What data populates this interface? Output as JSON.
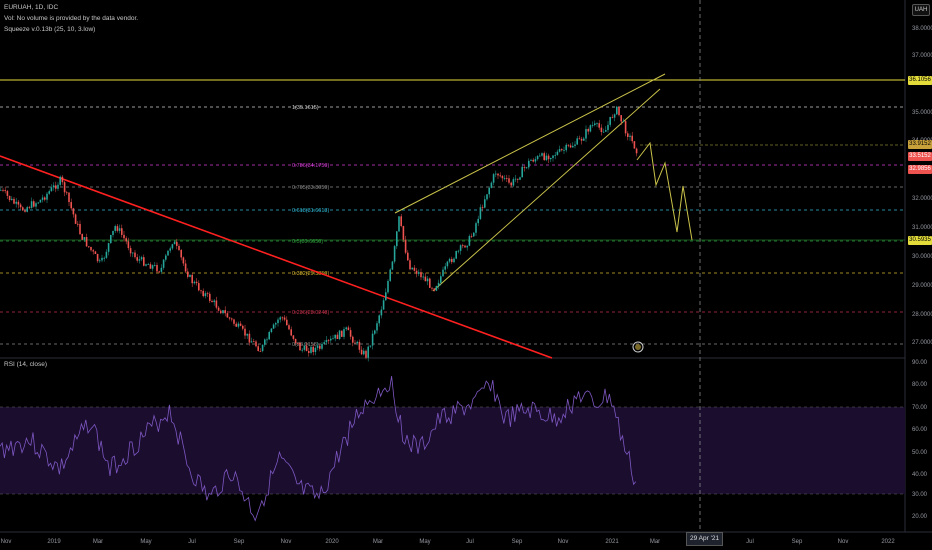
{
  "legend": {
    "symbol_line": "EURUAH, 1D, IDC",
    "volume_note": "Vol: No volume is provided by the data vendor.",
    "indicator": "Squeeze v.0.13b (25, 10, 3.low)",
    "rsi_title": "RSI (14, close)"
  },
  "currency_badge": "UAH",
  "price_axis": [
    "38.0000",
    "37.0000",
    "36.0000",
    "35.0000",
    "34.0000",
    "33.0000",
    "32.0000",
    "31.0000",
    "30.0000",
    "29.0000",
    "28.0000",
    "27.0000"
  ],
  "rsi_axis": [
    "90.00",
    "80.00",
    "70.00",
    "60.00",
    "50.00",
    "40.00",
    "30.00",
    "20.00"
  ],
  "time_axis": [
    "Nov",
    "2019",
    "Mar",
    "May",
    "Jul",
    "Sep",
    "Nov",
    "2020",
    "Mar",
    "May",
    "Jul",
    "Sep",
    "Nov",
    "2021",
    "Mar",
    "May",
    "Jul",
    "Sep",
    "Nov",
    "2022"
  ],
  "date_marker": "29 Apr '21",
  "fib_levels": [
    {
      "label": "1(35.1615)",
      "color": "#cfcfcf"
    },
    {
      "label": "0.786(34.1759)",
      "color": "#d63ed6"
    },
    {
      "label": "0.705(33.8059)",
      "color": "#8a8a8a"
    },
    {
      "label": "0.618(31.6613)",
      "color": "#2fb8d4"
    },
    {
      "label": "0.5(30.6650)",
      "color": "#2e9d3b"
    },
    {
      "label": "0.382(29.3859)",
      "color": "#d6b42e"
    },
    {
      "label": "0.236(28.0248)",
      "color": "#c4324a"
    },
    {
      "label": "0(26.9158)",
      "color": "#8a8a8a"
    }
  ],
  "price_labels": {
    "resistance": "36.1056",
    "current": "33.9152",
    "last": "33.5152",
    "low_mark": "32.9856",
    "target": "30.5935"
  },
  "colors": {
    "up": "#26a69a",
    "down": "#ef5350",
    "rsi": "#7e57c2",
    "rsi_band": "#1a0d2e",
    "trend": "#ff2020",
    "channel": "#c9c24a",
    "resistance": "#e4dc3a"
  }
}
